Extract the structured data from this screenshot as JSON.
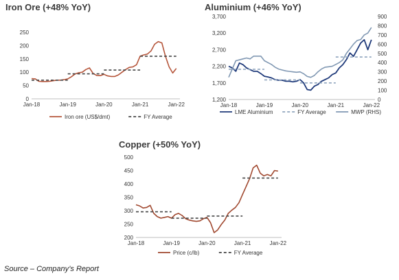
{
  "source_note": "Source – Company’s Report",
  "colors": {
    "iron": "#b5553a",
    "alu_lme": "#1f3a7a",
    "alu_mwp": "#7f97b2",
    "avg_dark": "#444444",
    "avg_light": "#8ea4bd",
    "copper": "#a0482f",
    "axis": "#bfbfbf",
    "tick_text": "#333333"
  },
  "chart_data": [
    {
      "id": "iron",
      "type": "line",
      "title": "Iron Ore  (+48% YoY)",
      "y_ticks": [
        "0",
        "50",
        "100",
        "150",
        "200",
        "250"
      ],
      "ylim": [
        0,
        250
      ],
      "x_ticks": [
        "Jan-18",
        "Jan-19",
        "Jan-20",
        "Jan-21",
        "Jan-22"
      ],
      "xlim": [
        2018.0,
        2022.1
      ],
      "legend": [
        "Iron ore (US$/dmt)",
        "FY Average"
      ],
      "series": [
        {
          "name": "Iron ore (US$/dmt)",
          "x": [
            2018.0,
            2018.1,
            2018.2,
            2018.3,
            2018.4,
            2018.5,
            2018.6,
            2018.7,
            2018.8,
            2018.9,
            2019.0,
            2019.1,
            2019.2,
            2019.3,
            2019.4,
            2019.5,
            2019.6,
            2019.7,
            2019.8,
            2019.9,
            2020.0,
            2020.1,
            2020.2,
            2020.3,
            2020.4,
            2020.5,
            2020.6,
            2020.7,
            2020.8,
            2020.9,
            2021.0,
            2021.1,
            2021.2,
            2021.3,
            2021.4,
            2021.5,
            2021.6,
            2021.7,
            2021.8,
            2021.9,
            2022.0
          ],
          "values": [
            76,
            75,
            66,
            65,
            65,
            66,
            68,
            70,
            70,
            72,
            75,
            83,
            93,
            98,
            100,
            110,
            116,
            95,
            88,
            87,
            92,
            86,
            84,
            84,
            90,
            100,
            110,
            118,
            120,
            128,
            160,
            165,
            168,
            180,
            205,
            215,
            210,
            160,
            120,
            97,
            114
          ]
        },
        {
          "name": "FY Average",
          "segments": [
            {
              "x": [
                2018.0,
                2019.0
              ],
              "value": 70
            },
            {
              "x": [
                2019.0,
                2020.0
              ],
              "value": 94
            },
            {
              "x": [
                2020.0,
                2021.0
              ],
              "value": 108
            },
            {
              "x": [
                2021.0,
                2022.0
              ],
              "value": 160
            }
          ]
        }
      ]
    },
    {
      "id": "alu",
      "type": "line",
      "title": "Aluminium  (+46% YoY)",
      "y_ticks": [
        "1,200",
        "1,700",
        "2,200",
        "2,700",
        "3,200",
        "3,700"
      ],
      "ylim": [
        1200,
        3700
      ],
      "y2_ticks": [
        "0",
        "100",
        "200",
        "300",
        "400",
        "500",
        "600",
        "700",
        "800",
        "900"
      ],
      "y2lim": [
        0,
        900
      ],
      "x_ticks": [
        "Jan-18",
        "Jan-19",
        "Jan-20",
        "Jan-21",
        "Jan-22"
      ],
      "xlim": [
        2018.0,
        2022.1
      ],
      "legend": [
        "LME Aluminium",
        "FY Average",
        "MWP (RHS)"
      ],
      "series": [
        {
          "name": "LME Aluminium",
          "x": [
            2018.0,
            2018.1,
            2018.2,
            2018.3,
            2018.4,
            2018.5,
            2018.6,
            2018.7,
            2018.8,
            2018.9,
            2019.0,
            2019.1,
            2019.2,
            2019.3,
            2019.4,
            2019.5,
            2019.6,
            2019.7,
            2019.8,
            2019.9,
            2020.0,
            2020.1,
            2020.2,
            2020.3,
            2020.4,
            2020.5,
            2020.6,
            2020.7,
            2020.8,
            2020.9,
            2021.0,
            2021.1,
            2021.2,
            2021.3,
            2021.4,
            2021.5,
            2021.6,
            2021.7,
            2021.8,
            2021.9,
            2022.0
          ],
          "values": [
            2200,
            2150,
            2050,
            2300,
            2250,
            2150,
            2100,
            2050,
            2050,
            1980,
            1900,
            1880,
            1850,
            1800,
            1780,
            1780,
            1750,
            1750,
            1730,
            1750,
            1800,
            1700,
            1500,
            1480,
            1600,
            1650,
            1750,
            1800,
            1850,
            1950,
            2000,
            2150,
            2250,
            2400,
            2600,
            2500,
            2700,
            2900,
            3000,
            2700,
            3000
          ]
        },
        {
          "name": "MWP (RHS)",
          "x": [
            2018.0,
            2018.1,
            2018.2,
            2018.3,
            2018.4,
            2018.5,
            2018.6,
            2018.7,
            2018.8,
            2018.9,
            2019.0,
            2019.1,
            2019.2,
            2019.3,
            2019.4,
            2019.5,
            2019.6,
            2019.7,
            2019.8,
            2019.9,
            2020.0,
            2020.1,
            2020.2,
            2020.3,
            2020.4,
            2020.5,
            2020.6,
            2020.7,
            2020.8,
            2020.9,
            2021.0,
            2021.1,
            2021.2,
            2021.3,
            2021.4,
            2021.5,
            2021.6,
            2021.7,
            2021.8,
            2021.9,
            2022.0
          ],
          "values": [
            240,
            330,
            420,
            430,
            440,
            450,
            440,
            470,
            470,
            470,
            420,
            400,
            380,
            350,
            330,
            320,
            310,
            305,
            300,
            295,
            300,
            280,
            250,
            240,
            260,
            300,
            330,
            350,
            355,
            360,
            380,
            400,
            430,
            500,
            550,
            600,
            640,
            650,
            700,
            720,
            780
          ]
        },
        {
          "name": "FY Average",
          "segments": [
            {
              "x": [
                2018.0,
                2019.0
              ],
              "value": 2110
            },
            {
              "x": [
                2019.0,
                2020.0
              ],
              "value": 1790
            },
            {
              "x": [
                2020.0,
                2021.0
              ],
              "value": 1700
            },
            {
              "x": [
                2021.0,
                2022.0
              ],
              "value": 2480
            }
          ]
        }
      ]
    },
    {
      "id": "copper",
      "type": "line",
      "title": "Copper  (+50% YoY)",
      "y_ticks": [
        "200",
        "250",
        "300",
        "350",
        "400",
        "450",
        "500"
      ],
      "ylim": [
        200,
        500
      ],
      "x_ticks": [
        "Jan-18",
        "Jan-19",
        "Jan-20",
        "Jan-21",
        "Jan-22"
      ],
      "xlim": [
        2018.0,
        2022.1
      ],
      "legend": [
        "Price (c/lb)",
        "FY Average"
      ],
      "series": [
        {
          "name": "Price (c/lb)",
          "x": [
            2018.0,
            2018.1,
            2018.2,
            2018.3,
            2018.4,
            2018.5,
            2018.6,
            2018.7,
            2018.8,
            2018.9,
            2019.0,
            2019.1,
            2019.2,
            2019.3,
            2019.4,
            2019.5,
            2019.6,
            2019.7,
            2019.8,
            2019.9,
            2020.0,
            2020.1,
            2020.2,
            2020.3,
            2020.4,
            2020.5,
            2020.6,
            2020.7,
            2020.8,
            2020.9,
            2021.0,
            2021.1,
            2021.2,
            2021.3,
            2021.4,
            2021.5,
            2021.6,
            2021.7,
            2021.8,
            2021.9,
            2022.0
          ],
          "values": [
            322,
            318,
            310,
            312,
            320,
            290,
            278,
            272,
            275,
            278,
            272,
            285,
            290,
            282,
            270,
            265,
            262,
            260,
            262,
            270,
            275,
            255,
            218,
            228,
            248,
            265,
            290,
            302,
            312,
            330,
            360,
            390,
            420,
            460,
            470,
            440,
            430,
            435,
            430,
            450,
            448
          ]
        },
        {
          "name": "FY Average",
          "segments": [
            {
              "x": [
                2018.0,
                2019.0
              ],
              "value": 296
            },
            {
              "x": [
                2019.0,
                2020.0
              ],
              "value": 272
            },
            {
              "x": [
                2020.0,
                2021.0
              ],
              "value": 280
            },
            {
              "x": [
                2021.0,
                2022.0
              ],
              "value": 422
            }
          ]
        }
      ]
    }
  ]
}
